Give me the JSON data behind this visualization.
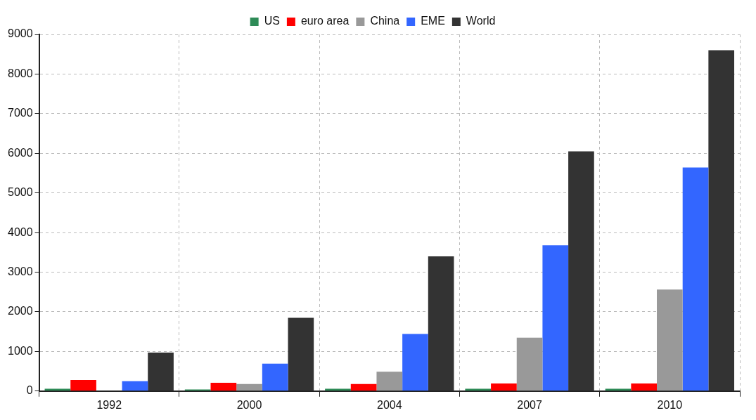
{
  "chart_data": {
    "type": "bar",
    "categories": [
      "1992",
      "2000",
      "2004",
      "2007",
      "2010"
    ],
    "series": [
      {
        "name": "US",
        "color": "#2e8b57",
        "values": [
          60,
          40,
          60,
          60,
          60
        ]
      },
      {
        "name": "euro area",
        "color": "#ff0000",
        "values": [
          280,
          210,
          180,
          190,
          190
        ]
      },
      {
        "name": "China",
        "color": "#999999",
        "values": [
          0,
          180,
          490,
          1350,
          2560
        ]
      },
      {
        "name": "EME",
        "color": "#3366ff",
        "values": [
          250,
          690,
          1440,
          3680,
          5640
        ]
      },
      {
        "name": "World",
        "color": "#333333",
        "values": [
          970,
          1850,
          3400,
          6050,
          8600
        ]
      }
    ],
    "ylim": [
      0,
      9000
    ],
    "yticks": [
      0,
      1000,
      2000,
      3000,
      4000,
      5000,
      6000,
      7000,
      8000,
      9000
    ],
    "grid": true,
    "legend": "top"
  }
}
